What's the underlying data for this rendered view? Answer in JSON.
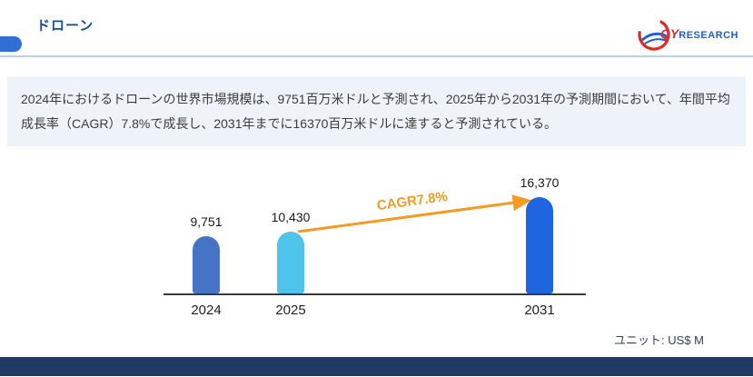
{
  "header": {
    "title": "ドローン",
    "logo": {
      "qy": "QY",
      "research": "RESEARCH"
    }
  },
  "summary": {
    "text": "2024年におけるドローンの世界市場規模は、9751百万米ドルと予測され、2025年から2031年の予測期間において、年間平均成長率（CAGR）7.8%で成長し、2031年までに16370百万米ドルに達すると予測されている。"
  },
  "chart_data": {
    "type": "bar",
    "title": "",
    "categories": [
      "2024",
      "2025",
      "2031"
    ],
    "values": [
      9751,
      10430,
      16370
    ],
    "value_labels": [
      "9,751",
      "10,430",
      "16,370"
    ],
    "bar_colors": [
      "#4573C5",
      "#4EC4EA",
      "#2065E0"
    ],
    "annotation": {
      "label": "CAGR7.8%",
      "from": "2025",
      "to": "2031",
      "color": "#F59B22"
    },
    "unit_label": "ユニット: US$ M",
    "xlabel": "",
    "ylabel": "",
    "ylim": [
      0,
      16370
    ],
    "grid": false,
    "legend": false
  },
  "colors": {
    "title": "#1A4FA0",
    "accent": "#2F6FD6",
    "divider": "#B9CFEA",
    "summary_bg": "#EEF2F9",
    "axis": "#3A3A3A",
    "footer": "#1F3864",
    "arrow": "#F59B22"
  }
}
